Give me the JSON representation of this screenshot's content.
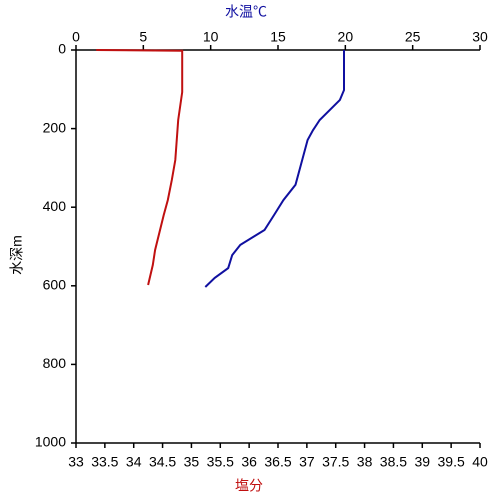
{
  "chart_data": {
    "type": "profile",
    "x2label": "水温℃",
    "xlabel": "塩分",
    "ylabel": "水深m",
    "x2lim": [
      0,
      30
    ],
    "x2ticks": [
      0,
      5,
      10,
      15,
      20,
      25,
      30
    ],
    "xlim": [
      33,
      40
    ],
    "xticks": [
      33,
      33.5,
      34,
      34.5,
      35,
      35.5,
      36,
      36.5,
      37,
      37.5,
      38,
      38.5,
      39,
      39.5,
      40
    ],
    "ylim": [
      0,
      1000
    ],
    "yticks": [
      0,
      200,
      400,
      600,
      800,
      1000
    ],
    "y_inverted": true,
    "series": [
      {
        "color": "#1010a0",
        "axis": "x2",
        "values": [
          19.9,
          19.9,
          19.6,
          18.1,
          17.6,
          17.2,
          16.8,
          16.3,
          15.4,
          14.7,
          14.0,
          12.2,
          11.6,
          11.3,
          10.3,
          9.6
        ],
        "depth": [
          0,
          102,
          127,
          178,
          204,
          229,
          280,
          343,
          382,
          420,
          458,
          496,
          522,
          555,
          580,
          603
        ]
      },
      {
        "color": "#c01010",
        "axis": "x",
        "values": [
          33.35,
          34.84,
          34.84,
          34.77,
          34.72,
          34.66,
          34.59,
          34.52,
          34.37,
          34.33,
          34.25
        ],
        "depth": [
          0,
          2,
          107,
          178,
          280,
          331,
          382,
          420,
          509,
          547,
          598
        ]
      }
    ]
  }
}
